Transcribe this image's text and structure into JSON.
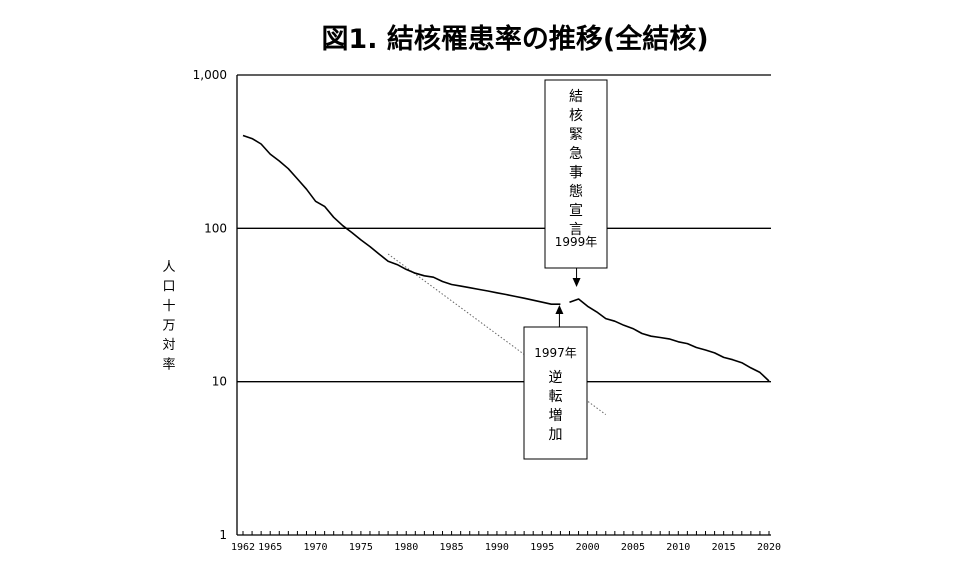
{
  "chart_data": {
    "type": "line",
    "title": "図1. 結核罹患率の推移(全結核)",
    "ylabel": "人口十万対率",
    "yscale": "log",
    "ylim": [
      1,
      1000
    ],
    "y_ticks": [
      {
        "value": 1,
        "label": "1"
      },
      {
        "value": 10,
        "label": "10"
      },
      {
        "value": 100,
        "label": "100"
      },
      {
        "value": 1000,
        "label": "1,000"
      }
    ],
    "xlim": [
      1962,
      2020
    ],
    "x_ticks": [
      {
        "value": 1962,
        "label": "1962"
      },
      {
        "value": 1965,
        "label": "1965"
      },
      {
        "value": 1970,
        "label": "1970"
      },
      {
        "value": 1975,
        "label": "1975"
      },
      {
        "value": 1980,
        "label": "1980"
      },
      {
        "value": 1985,
        "label": "1985"
      },
      {
        "value": 1990,
        "label": "1990"
      },
      {
        "value": 1995,
        "label": "1995"
      },
      {
        "value": 2000,
        "label": "2000"
      },
      {
        "value": 2005,
        "label": "2005"
      },
      {
        "value": 2010,
        "label": "2010"
      },
      {
        "value": 2015,
        "label": "2015"
      },
      {
        "value": 2020,
        "label": "2020"
      }
    ],
    "grid": "horizontal-major",
    "series": [
      {
        "x": [
          1962,
          1963,
          1964,
          1965,
          1966,
          1967,
          1968,
          1969,
          1970,
          1971,
          1972,
          1973,
          1974,
          1975,
          1976,
          1977,
          1978,
          1979,
          1980,
          1981,
          1982,
          1983,
          1984,
          1985,
          1986,
          1987,
          1988,
          1989,
          1990,
          1991,
          1992,
          1993,
          1994,
          1995,
          1996,
          1997
        ],
        "y": [
          403,
          385,
          355,
          305,
          275,
          245,
          210,
          180,
          150,
          139,
          118,
          104,
          94,
          84,
          76,
          68,
          61,
          58,
          54,
          51,
          49,
          48,
          45,
          43,
          42,
          41,
          40,
          39,
          38,
          37,
          36,
          35,
          34,
          33,
          32,
          32
        ]
      },
      {
        "x": [
          1998,
          1999,
          2000,
          2001,
          2002,
          2003,
          2004,
          2005,
          2006,
          2007,
          2008,
          2009,
          2010,
          2011,
          2012,
          2013,
          2014,
          2015,
          2016,
          2017,
          2018,
          2019,
          2020
        ],
        "y": [
          33,
          34.6,
          31,
          28.5,
          25.8,
          24.8,
          23.3,
          22.2,
          20.6,
          19.8,
          19.4,
          19.0,
          18.2,
          17.7,
          16.7,
          16.1,
          15.4,
          14.4,
          13.9,
          13.3,
          12.3,
          11.5,
          10.1
        ]
      }
    ],
    "trend_line": {
      "x": [
        1978,
        2002
      ],
      "y": [
        68,
        6.1
      ]
    },
    "annotations": [
      {
        "id": "emergency",
        "chars": [
          "結",
          "核",
          "緊",
          "急",
          "事",
          "態",
          "宣",
          "言"
        ],
        "year_label": "1999年",
        "points_to_x": 1999
      },
      {
        "id": "reversal",
        "year_label": "1997年",
        "chars": [
          "逆",
          "転",
          "増",
          "加"
        ],
        "points_to_x": 1997
      }
    ]
  }
}
